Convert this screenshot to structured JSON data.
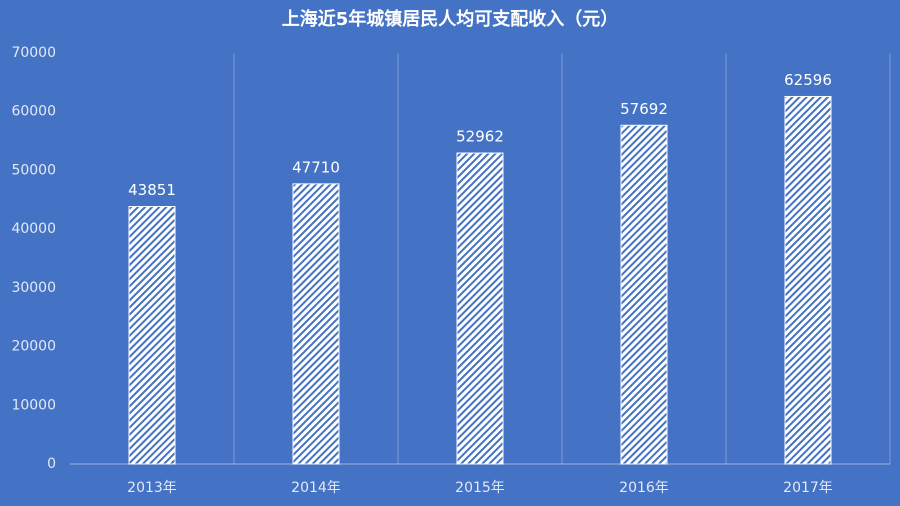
{
  "chart_data": {
    "type": "bar",
    "title": "上海近5年城镇居民人均可支配收入（元）",
    "categories": [
      "2013年",
      "2014年",
      "2015年",
      "2016年",
      "2017年"
    ],
    "values": [
      43851,
      47710,
      52962,
      57692,
      62596
    ],
    "color": "#ffffff",
    "ylim": [
      0,
      70000
    ],
    "yticks": [
      0,
      10000,
      20000,
      30000,
      40000,
      50000,
      60000,
      70000
    ]
  }
}
